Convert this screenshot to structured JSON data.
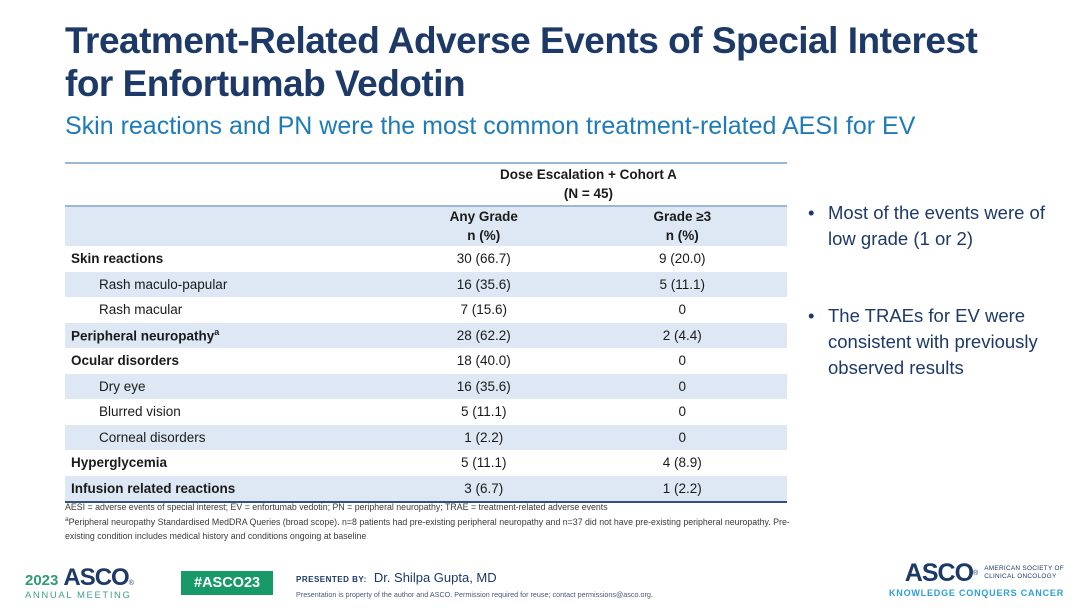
{
  "slide": {
    "title": "Treatment-Related Adverse Events of Special Interest for Enfortumab Vedotin",
    "subtitle": "Skin reactions and PN were the most common treatment-related AESI for EV"
  },
  "table": {
    "group_header": "Dose Escalation + Cohort A",
    "group_header_sub": "(N = 45)",
    "columns": [
      {
        "label": "Any Grade",
        "sub": "n (%)"
      },
      {
        "label": "Grade ≥3",
        "sub": "n (%)"
      }
    ],
    "rows": [
      {
        "label": "Skin reactions",
        "any_grade": "30 (66.7)",
        "grade_ge3": "9 (20.0)"
      },
      {
        "label": "Rash maculo-papular",
        "any_grade": "16 (35.6)",
        "grade_ge3": "5 (11.1)"
      },
      {
        "label": "Rash macular",
        "any_grade": "7 (15.6)",
        "grade_ge3": "0"
      },
      {
        "label": "Peripheral neuropathy",
        "sup": "a",
        "any_grade": "28 (62.2)",
        "grade_ge3": "2 (4.4)"
      },
      {
        "label": "Ocular disorders",
        "any_grade": "18 (40.0)",
        "grade_ge3": "0"
      },
      {
        "label": "Dry eye",
        "any_grade": "16 (35.6)",
        "grade_ge3": "0"
      },
      {
        "label": "Blurred vision",
        "any_grade": "5 (11.1)",
        "grade_ge3": "0"
      },
      {
        "label": "Corneal disorders",
        "any_grade": "1 (2.2)",
        "grade_ge3": "0"
      },
      {
        "label": "Hyperglycemia",
        "any_grade": "5 (11.1)",
        "grade_ge3": "4 (8.9)"
      },
      {
        "label": "Infusion related reactions",
        "any_grade": "3 (6.7)",
        "grade_ge3": "1 (2.2)"
      }
    ]
  },
  "bullets": [
    "Most of the events were of low grade (1 or 2)",
    "The TRAEs for EV were consistent with previously observed results"
  ],
  "footnotes": [
    {
      "text": "AESI = adverse events of special interest; EV = enfortumab vedotin; PN = peripheral neuropathy; TRAE = treatment-related adverse events"
    },
    {
      "sup": "a",
      "text": "Peripheral neuropathy Standardised MedDRA Queries (broad scope). n=8 patients had pre-existing peripheral neuropathy and n=37 did not have pre-existing peripheral neuropathy. Pre-existing condition includes medical history and conditions ongoing at baseline"
    }
  ],
  "footer": {
    "meeting_year": "2023",
    "meeting_logo": "ASCO",
    "meeting_reg": "®",
    "meeting_sub": "ANNUAL MEETING",
    "hashtag": "#ASCO23",
    "presented_label": "PRESENTED BY:",
    "presenter": "Dr. Shilpa Gupta, MD",
    "disclaimer": "Presentation is property of the author and ASCO. Permission required for reuse; contact permissions@asco.org.",
    "society_logo": "ASCO",
    "society_reg": "®",
    "society_line1": "AMERICAN SOCIETY OF",
    "society_line2": "CLINICAL ONCOLOGY",
    "tagline": "KNOWLEDGE CONQUERS CANCER"
  },
  "colors": {
    "title_navy": "#1c3968",
    "subtitle_blue": "#1e7ab8",
    "row_highlight_blue": "#dde8f4",
    "table_border_steel": "#9cb6d4",
    "table_border_dark": "#33517d",
    "badge_green": "#189a68",
    "meeting_teal": "#43a189",
    "tagline_blue": "#2ca0d6"
  }
}
